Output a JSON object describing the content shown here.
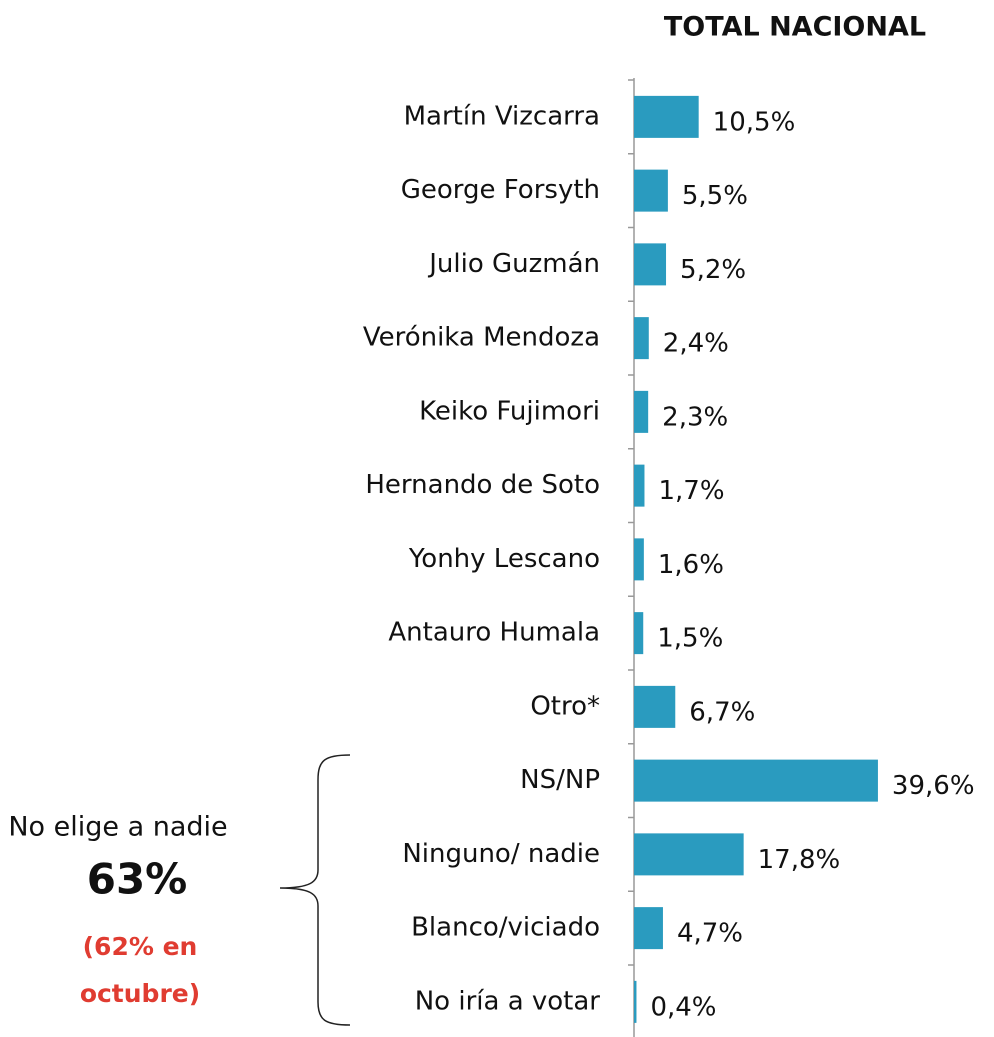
{
  "chart_data": {
    "type": "bar",
    "orientation": "horizontal",
    "title": "TOTAL NACIONAL",
    "categories": [
      "Martín Vizcarra",
      "George Forsyth",
      "Julio Guzmán",
      "Verónika Mendoza",
      "Keiko Fujimori",
      "Hernando de Soto",
      "Yonhy Lescano",
      "Antauro Humala",
      "Otro*",
      "NS/NP",
      "Ninguno/ nadie",
      "Blanco/viciado",
      "No iría a votar"
    ],
    "values": [
      10.5,
      5.5,
      5.2,
      2.4,
      2.3,
      1.7,
      1.6,
      1.5,
      6.7,
      39.6,
      17.8,
      4.7,
      0.4
    ],
    "value_labels": [
      "10,5%",
      "5,5%",
      "5,2%",
      "2,4%",
      "2,3%",
      "1,7%",
      "1,6%",
      "1,5%",
      "6,7%",
      "39,6%",
      "17,8%",
      "4,7%",
      "0,4%"
    ],
    "color": "#2a9bbf",
    "annotations": [
      "No elige a nadie",
      "63%",
      "(62% en",
      "octubre)"
    ]
  }
}
